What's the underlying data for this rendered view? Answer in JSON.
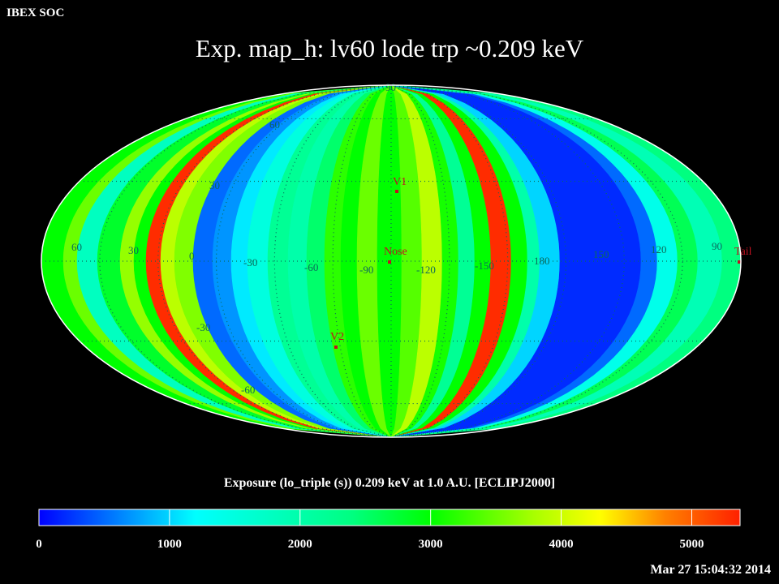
{
  "header": {
    "org": "IBEX SOC",
    "title": "Exp.   map_h: lv60 lode trp ~0.209 keV",
    "timestamp": "Mar 27 15:04:32 2014"
  },
  "chart_data": {
    "type": "heatmap",
    "projection": "Mollweide (all-sky)",
    "quantity": "Exposure (lo_triple (s))  0.209 keV at 1.0 A.U. [ECLIPJ2000]",
    "colorbar": {
      "ticks": [
        "0",
        "1000",
        "2000",
        "3000",
        "4000",
        "5000"
      ],
      "range": [
        0,
        5370
      ],
      "colors": [
        "#0000ff",
        "#00ffff",
        "#00ff80",
        "#00ff00",
        "#aaff00",
        "#ffff00",
        "#ff8000",
        "#ff2000"
      ]
    },
    "band_exposure_left_to_right": [
      3000,
      3500,
      1800,
      2800,
      3700,
      3000,
      5300,
      3900,
      3600,
      500,
      700,
      1100,
      1500,
      2200,
      2000,
      2500,
      3200,
      3000,
      3500,
      3000,
      3400,
      3900,
      3100,
      2200,
      3000,
      5300,
      3000,
      2000,
      1000,
      200,
      500,
      1400,
      2600,
      1900,
      2400
    ],
    "lon_labels": [
      "60",
      "30",
      "0",
      "-30",
      "-60",
      "-90",
      "-120",
      "-150",
      "180",
      "150",
      "120",
      "90"
    ],
    "lat_labels": [
      "90",
      "60",
      "30",
      "-30",
      "-60"
    ],
    "markers": [
      {
        "name": "V1"
      },
      {
        "name": "Nose"
      },
      {
        "name": "V2"
      },
      {
        "name": "Tail"
      }
    ]
  }
}
